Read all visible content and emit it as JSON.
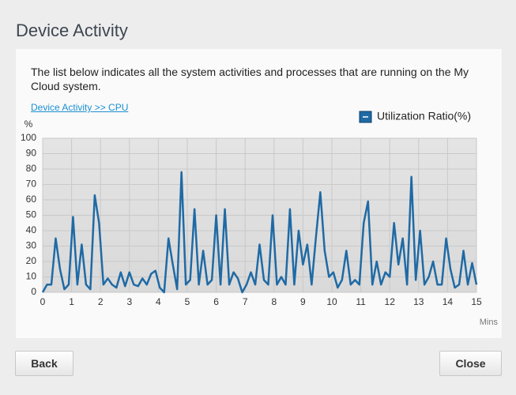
{
  "header": {
    "title": "Device Activity"
  },
  "description": "The list below indicates all the system activities and processes that are running on the My Cloud system.",
  "link": "Device Activity >> CPU",
  "chart_data": {
    "type": "line",
    "y_label": "%",
    "x_label": "Mins",
    "xlim": [
      0,
      15
    ],
    "xticks": [
      0,
      1,
      2,
      3,
      4,
      5,
      6,
      7,
      8,
      9,
      10,
      11,
      12,
      13,
      14,
      15
    ],
    "ylim": [
      0,
      100
    ],
    "yticks": [
      0,
      10,
      20,
      30,
      40,
      50,
      60,
      70,
      80,
      90,
      100
    ],
    "grid": true,
    "legend": "top-right",
    "x": [
      0,
      0.15,
      0.3,
      0.45,
      0.6,
      0.75,
      0.9,
      1.05,
      1.2,
      1.35,
      1.5,
      1.65,
      1.8,
      1.95,
      2.1,
      2.25,
      2.4,
      2.55,
      2.7,
      2.85,
      3,
      3.15,
      3.3,
      3.45,
      3.6,
      3.75,
      3.9,
      4.05,
      4.2,
      4.35,
      4.5,
      4.65,
      4.8,
      4.95,
      5.1,
      5.25,
      5.4,
      5.55,
      5.7,
      5.85,
      6,
      6.15,
      6.3,
      6.45,
      6.6,
      6.75,
      6.9,
      7.05,
      7.2,
      7.35,
      7.5,
      7.65,
      7.8,
      7.95,
      8.1,
      8.25,
      8.4,
      8.55,
      8.7,
      8.85,
      9,
      9.15,
      9.3,
      9.45,
      9.6,
      9.75,
      9.9,
      10.05,
      10.2,
      10.35,
      10.5,
      10.65,
      10.8,
      10.95,
      11.1,
      11.25,
      11.4,
      11.55,
      11.7,
      11.85,
      12,
      12.15,
      12.3,
      12.45,
      12.6,
      12.75,
      12.9,
      13.05,
      13.2,
      13.35,
      13.5,
      13.65,
      13.8,
      13.95,
      14.1,
      14.25,
      14.4,
      14.55,
      14.7,
      14.85,
      15
    ],
    "series": [
      {
        "name": "Utilization Ratio(%)",
        "color": "#1f6aa5",
        "values": [
          0,
          5,
          5,
          35,
          15,
          2,
          5,
          49,
          5,
          31,
          5,
          2,
          63,
          45,
          5,
          9,
          5,
          3,
          13,
          4,
          13,
          5,
          4,
          9,
          5,
          12,
          14,
          3,
          0,
          35,
          18,
          2,
          78,
          5,
          8,
          54,
          5,
          27,
          5,
          8,
          50,
          5,
          54,
          5,
          13,
          9,
          0,
          5,
          13,
          5,
          31,
          8,
          5,
          50,
          5,
          10,
          5,
          54,
          5,
          40,
          18,
          31,
          5,
          36,
          65,
          27,
          10,
          13,
          3,
          8,
          27,
          5,
          8,
          5,
          45,
          59,
          5,
          20,
          5,
          13,
          10,
          45,
          18,
          35,
          5,
          75,
          8,
          40,
          5,
          10,
          20,
          5,
          5,
          35,
          15,
          3,
          5,
          27,
          5,
          19,
          5
        ]
      }
    ]
  },
  "buttons": {
    "back": "Back",
    "close": "Close"
  }
}
